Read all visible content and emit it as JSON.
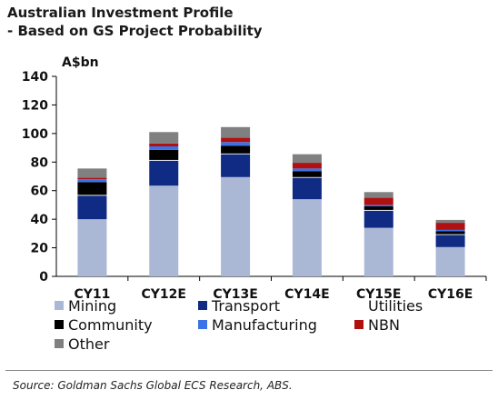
{
  "chart_data": {
    "type": "bar",
    "stacked": true,
    "title": "Australian Investment Profile",
    "subtitle": "- Based on GS Project Probability",
    "ylabel": "A$bn",
    "xlabel": "",
    "ylim": [
      0,
      140
    ],
    "yticks": [
      0,
      20,
      40,
      60,
      80,
      100,
      120,
      140
    ],
    "categories": [
      "CY11",
      "CY12E",
      "CY13E",
      "CY14E",
      "CY15E",
      "CY16E"
    ],
    "series": [
      {
        "name": "Mining",
        "color": "#aab8d6",
        "values": [
          40,
          63.5,
          69.5,
          54,
          34,
          20.5
        ]
      },
      {
        "name": "Transport",
        "color": "#0f2b84",
        "values": [
          16.5,
          17.5,
          16,
          15,
          12,
          8.5
        ]
      },
      {
        "name": "Utilities",
        "color": "#ffffff",
        "values": [
          0.5,
          0.5,
          0.5,
          0.5,
          0.5,
          0.5
        ]
      },
      {
        "name": "Community",
        "color": "#000000",
        "values": [
          9,
          7,
          5.5,
          4,
          2.5,
          2
        ]
      },
      {
        "name": "Manufacturing",
        "color": "#3b73e6",
        "values": [
          2,
          2.5,
          2.5,
          2,
          1,
          1
        ]
      },
      {
        "name": "NBN",
        "color": "#b01010",
        "values": [
          1,
          2,
          3,
          4,
          5,
          5
        ]
      },
      {
        "name": "Other",
        "color": "#808080",
        "values": [
          6.5,
          8,
          7.5,
          6,
          4,
          2
        ]
      }
    ],
    "legend_position": "bottom",
    "grid": false
  },
  "source": "Source: Goldman Sachs Global ECS Research, ABS."
}
